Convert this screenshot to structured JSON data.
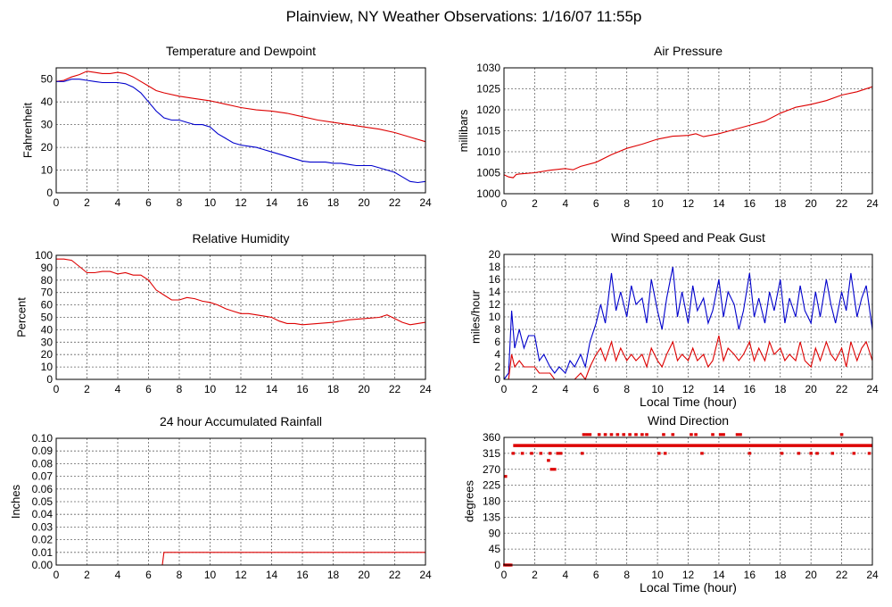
{
  "page": {
    "title": "Plainview, NY Weather Observations: 1/16/07 11:55p"
  },
  "colors": {
    "red": "#dd0000",
    "blue": "#0000cc"
  },
  "chart_data": [
    {
      "id": "temp",
      "type": "line",
      "title": "Temperature and Dewpoint",
      "ylabel": "Fahrenheit",
      "xlabel": "",
      "xlim": [
        0,
        24
      ],
      "ylim": [
        0,
        55
      ],
      "yticks": [
        0,
        10,
        20,
        30,
        40,
        50
      ],
      "xticks": [
        0,
        2,
        4,
        6,
        8,
        10,
        12,
        14,
        16,
        18,
        20,
        22,
        24
      ],
      "series": [
        {
          "name": "Temperature",
          "color": "red",
          "x": [
            0,
            0.5,
            1,
            1.5,
            2,
            2.5,
            3,
            3.5,
            4,
            4.5,
            5,
            5.5,
            6,
            6.5,
            7,
            8,
            9,
            10,
            11,
            12,
            13,
            14,
            15,
            16,
            17,
            18,
            19,
            20,
            21,
            22,
            23,
            24
          ],
          "y": [
            49,
            49.5,
            51,
            52,
            53.5,
            53,
            52.5,
            52.5,
            53,
            52.5,
            51,
            49,
            47,
            45,
            44,
            42.5,
            41.5,
            40.5,
            39,
            37.5,
            36.5,
            36,
            35,
            33.5,
            32,
            31,
            30,
            29,
            28,
            26.5,
            24.5,
            22.5
          ]
        },
        {
          "name": "Dewpoint",
          "color": "blue",
          "x": [
            0,
            0.5,
            1,
            1.5,
            2,
            2.5,
            3,
            3.5,
            4,
            4.5,
            5,
            5.5,
            6,
            6.5,
            7,
            7.5,
            8,
            8.5,
            9,
            9.5,
            10,
            10.5,
            11,
            11.5,
            12,
            12.5,
            13,
            13.5,
            14,
            14.5,
            15,
            15.5,
            16,
            16.5,
            17,
            17.5,
            18,
            18.5,
            19,
            19.5,
            20,
            20.5,
            21,
            21.5,
            22,
            22.5,
            23,
            23.5,
            24
          ],
          "y": [
            49,
            49,
            50,
            50,
            49.5,
            49,
            48.5,
            48.5,
            48.5,
            48,
            46.5,
            44,
            40,
            36,
            33,
            32,
            32,
            31,
            30,
            30,
            29,
            26,
            24,
            22,
            21,
            20.5,
            20,
            19,
            18,
            17,
            16,
            15,
            14,
            13.5,
            13.5,
            13.5,
            13,
            13,
            12.5,
            12,
            12,
            12,
            11,
            10,
            9,
            7,
            5,
            4.5,
            5
          ]
        }
      ]
    },
    {
      "id": "pressure",
      "type": "line",
      "title": "Air Pressure",
      "ylabel": "millibars",
      "xlabel": "",
      "xlim": [
        0,
        24
      ],
      "ylim": [
        1000,
        1030
      ],
      "yticks": [
        1000,
        1005,
        1010,
        1015,
        1020,
        1025,
        1030
      ],
      "xticks": [
        0,
        2,
        4,
        6,
        8,
        10,
        12,
        14,
        16,
        18,
        20,
        22,
        24
      ],
      "series": [
        {
          "name": "Pressure",
          "color": "red",
          "x": [
            0,
            0.3,
            0.6,
            0.8,
            1,
            2,
            3,
            4,
            4.5,
            5,
            6,
            7,
            8,
            9,
            10,
            11,
            12,
            12.5,
            13,
            14,
            15,
            16,
            17,
            18,
            19,
            20,
            21,
            22,
            23,
            24
          ],
          "y": [
            1004.5,
            1004,
            1003.8,
            1004.6,
            1004.7,
            1005,
            1005.6,
            1006,
            1005.7,
            1006.5,
            1007.5,
            1009.3,
            1010.8,
            1011.8,
            1013,
            1013.7,
            1013.9,
            1014.3,
            1013.6,
            1014.3,
            1015.3,
            1016.3,
            1017.3,
            1019.2,
            1020.6,
            1021.3,
            1022.2,
            1023.5,
            1024.3,
            1025.5
          ]
        }
      ]
    },
    {
      "id": "humidity",
      "type": "line",
      "title": "Relative Humidity",
      "ylabel": "Percent",
      "xlabel": "",
      "xlim": [
        0,
        24
      ],
      "ylim": [
        0,
        100
      ],
      "yticks": [
        0,
        10,
        20,
        30,
        40,
        50,
        60,
        70,
        80,
        90,
        100
      ],
      "xticks": [
        0,
        2,
        4,
        6,
        8,
        10,
        12,
        14,
        16,
        18,
        20,
        22,
        24
      ],
      "series": [
        {
          "name": "Relative Humidity",
          "color": "red",
          "x": [
            0,
            0.5,
            1,
            1.5,
            2,
            2.5,
            3,
            3.5,
            4,
            4.5,
            5,
            5.5,
            6,
            6.5,
            7,
            7.5,
            8,
            8.5,
            9,
            9.5,
            10,
            10.5,
            11,
            11.5,
            12,
            12.5,
            13,
            13.5,
            14,
            14.5,
            15,
            15.5,
            16,
            17,
            18,
            19,
            20,
            21,
            21.5,
            22,
            22.5,
            23,
            23.5,
            24
          ],
          "y": [
            97,
            97,
            96,
            91,
            86,
            86,
            87,
            87,
            85,
            86,
            84,
            84,
            80,
            72,
            68,
            64,
            64,
            66,
            65,
            63,
            62,
            60,
            57,
            55,
            53,
            53,
            52,
            51,
            50,
            47,
            45,
            45,
            44,
            45,
            46,
            48,
            49,
            50,
            52,
            49,
            46,
            44,
            45,
            46
          ]
        }
      ]
    },
    {
      "id": "wind",
      "type": "line",
      "title": "Wind Speed and Peak Gust",
      "ylabel": "miles/hour",
      "xlabel": "Local Time (hour)",
      "xlim": [
        0,
        24
      ],
      "ylim": [
        0,
        20
      ],
      "yticks": [
        0,
        2,
        4,
        6,
        8,
        10,
        12,
        14,
        16,
        18,
        20
      ],
      "xticks": [
        0,
        2,
        4,
        6,
        8,
        10,
        12,
        14,
        16,
        18,
        20,
        22,
        24
      ],
      "series": [
        {
          "name": "Peak Gust",
          "color": "blue",
          "x": [
            0,
            0.3,
            0.5,
            0.7,
            1,
            1.3,
            1.6,
            2,
            2.3,
            2.6,
            3,
            3.3,
            3.6,
            4,
            4.3,
            4.6,
            5,
            5.3,
            5.6,
            6,
            6.3,
            6.6,
            7,
            7.3,
            7.6,
            8,
            8.3,
            8.6,
            9,
            9.3,
            9.6,
            10,
            10.3,
            10.6,
            11,
            11.3,
            11.6,
            12,
            12.3,
            12.6,
            13,
            13.3,
            13.6,
            14,
            14.3,
            14.6,
            15,
            15.3,
            15.6,
            16,
            16.3,
            16.6,
            17,
            17.3,
            17.6,
            18,
            18.3,
            18.6,
            19,
            19.3,
            19.6,
            20,
            20.3,
            20.6,
            21,
            21.3,
            21.6,
            22,
            22.3,
            22.6,
            23,
            23.3,
            23.6,
            24
          ],
          "y": [
            0,
            1,
            11,
            5,
            8,
            5,
            7,
            7,
            3,
            4,
            2,
            1,
            2,
            1,
            3,
            2,
            4,
            2,
            6,
            9,
            12,
            9,
            17,
            11,
            14,
            10,
            15,
            12,
            13,
            9,
            16,
            11,
            8,
            13,
            18,
            10,
            14,
            9,
            15,
            11,
            13,
            9,
            11,
            16,
            10,
            14,
            12,
            8,
            11,
            17,
            10,
            13,
            9,
            14,
            11,
            16,
            9,
            13,
            10,
            15,
            11,
            9,
            14,
            10,
            16,
            12,
            9,
            14,
            11,
            17,
            10,
            13,
            15,
            8
          ]
        },
        {
          "name": "Wind Speed",
          "color": "red",
          "x": [
            0,
            0.3,
            0.5,
            0.7,
            1,
            1.3,
            1.6,
            2,
            2.3,
            2.6,
            3,
            3.3,
            3.6,
            4,
            4.3,
            4.6,
            5,
            5.3,
            5.6,
            6,
            6.3,
            6.6,
            7,
            7.3,
            7.6,
            8,
            8.3,
            8.6,
            9,
            9.3,
            9.6,
            10,
            10.3,
            10.6,
            11,
            11.3,
            11.6,
            12,
            12.3,
            12.6,
            13,
            13.3,
            13.6,
            14,
            14.3,
            14.6,
            15,
            15.3,
            15.6,
            16,
            16.3,
            16.6,
            17,
            17.3,
            17.6,
            18,
            18.3,
            18.6,
            19,
            19.3,
            19.6,
            20,
            20.3,
            20.6,
            21,
            21.3,
            21.6,
            22,
            22.3,
            22.6,
            23,
            23.3,
            23.6,
            24
          ],
          "y": [
            0,
            0,
            4,
            2,
            3,
            2,
            2,
            2,
            1,
            1,
            1,
            0,
            0,
            0,
            0,
            0,
            1,
            0,
            2,
            4,
            5,
            3,
            6,
            3,
            5,
            3,
            4,
            3,
            4,
            2,
            5,
            3,
            2,
            4,
            6,
            3,
            4,
            3,
            5,
            3,
            4,
            2,
            3,
            7,
            3,
            5,
            4,
            3,
            4,
            6,
            3,
            5,
            3,
            6,
            4,
            5,
            3,
            4,
            3,
            6,
            3,
            2,
            5,
            3,
            6,
            4,
            3,
            5,
            2,
            6,
            3,
            5,
            6,
            3
          ]
        }
      ]
    },
    {
      "id": "rain",
      "type": "line",
      "title": "24 hour Accumulated Rainfall",
      "ylabel": "Inches",
      "xlabel": "",
      "xlim": [
        0,
        24
      ],
      "ylim": [
        0,
        0.1
      ],
      "yticks": [
        "0.00",
        "0.01",
        "0.02",
        "0.03",
        "0.04",
        "0.05",
        "0.06",
        "0.07",
        "0.08",
        "0.09",
        "0.10"
      ],
      "xticks": [
        0,
        2,
        4,
        6,
        8,
        10,
        12,
        14,
        16,
        18,
        20,
        22,
        24
      ],
      "series": [
        {
          "name": "Rainfall",
          "color": "red",
          "x": [
            0,
            6.9,
            7.0,
            7.05,
            24
          ],
          "y": [
            0,
            0,
            0.01,
            0.01,
            0.01
          ]
        }
      ]
    },
    {
      "id": "direction",
      "type": "scatter",
      "title": "Wind Direction",
      "ylabel": "degrees",
      "xlabel": "Local Time (hour)",
      "xlim": [
        0,
        24
      ],
      "ylim": [
        0,
        360
      ],
      "yticks": [
        0,
        45,
        90,
        135,
        180,
        225,
        270,
        315,
        360
      ],
      "xticks": [
        0,
        2,
        4,
        6,
        8,
        10,
        12,
        14,
        16,
        18,
        20,
        22,
        24
      ],
      "series": [
        {
          "name": "Wind Direction",
          "color": "red",
          "x": [
            0.05,
            0.15,
            0.25,
            0.35,
            0.45,
            0.1,
            0.6,
            2.9,
            3.1,
            3.3,
            3.5,
            5.2,
            5.4,
            5.6,
            6.2,
            6.6,
            7.0,
            7.4,
            7.8,
            8.2,
            8.6,
            9.0,
            9.3,
            10.4,
            11.0,
            12.2,
            12.5,
            13.6,
            14.1,
            14.3,
            15.2,
            15.4,
            1.2,
            1.8,
            2.4,
            3.0,
            3.7,
            5.1,
            10.1,
            10.5,
            12.9,
            16.0,
            18.1,
            19.2,
            20.0,
            20.4,
            21.4,
            22.8,
            23.8,
            22.0
          ],
          "y": [
            0,
            0,
            0,
            0,
            0,
            250,
            315,
            295,
            270,
            270,
            315,
            368,
            368,
            368,
            368,
            368,
            368,
            368,
            368,
            368,
            368,
            368,
            368,
            368,
            368,
            368,
            368,
            368,
            368,
            368,
            368,
            368,
            315,
            315,
            315,
            315,
            315,
            315,
            315,
            315,
            315,
            315,
            315,
            315,
            315,
            315,
            315,
            315,
            315,
            368
          ],
          "band": {
            "y": 337,
            "x_start": 0.6,
            "x_end": 24
          }
        }
      ]
    }
  ]
}
